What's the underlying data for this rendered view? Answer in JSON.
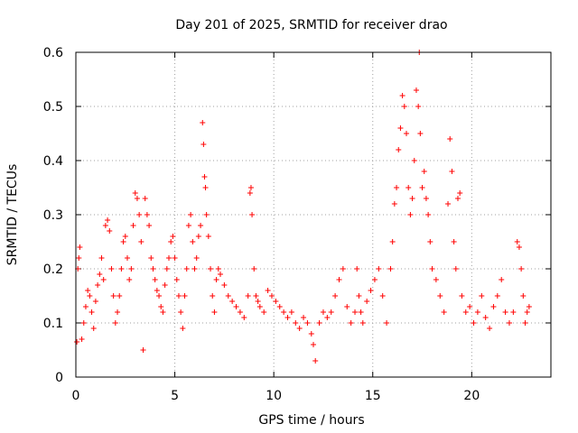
{
  "chart_data": {
    "type": "scatter",
    "title": "Day 201 of 2025, SRMTID for receiver drao",
    "xlabel": "GPS time / hours",
    "ylabel": "SRMTID / TECUs",
    "xlim": [
      0,
      24
    ],
    "ylim": [
      0,
      0.6
    ],
    "x_ticks": [
      0,
      5,
      10,
      15,
      20
    ],
    "x_tick_labels": [
      "0",
      "5",
      "10",
      "15",
      "20"
    ],
    "y_ticks": [
      0,
      0.1,
      0.2,
      0.3,
      0.4,
      0.5,
      0.6
    ],
    "y_tick_labels": [
      "0",
      "0.1",
      "0.2",
      "0.3",
      "0.4",
      "0.5",
      "0.6"
    ],
    "grid": true,
    "marker": "+",
    "color": "#ff0000",
    "series": [
      {
        "name": "drao",
        "points": [
          [
            0.05,
            0.065
          ],
          [
            0.1,
            0.2
          ],
          [
            0.15,
            0.22
          ],
          [
            0.2,
            0.24
          ],
          [
            0.3,
            0.07
          ],
          [
            0.4,
            0.1
          ],
          [
            0.5,
            0.13
          ],
          [
            0.6,
            0.16
          ],
          [
            0.7,
            0.15
          ],
          [
            0.8,
            0.12
          ],
          [
            0.9,
            0.09
          ],
          [
            1.0,
            0.14
          ],
          [
            1.1,
            0.17
          ],
          [
            1.2,
            0.19
          ],
          [
            1.3,
            0.22
          ],
          [
            1.4,
            0.18
          ],
          [
            1.5,
            0.28
          ],
          [
            1.6,
            0.29
          ],
          [
            1.7,
            0.27
          ],
          [
            1.8,
            0.2
          ],
          [
            1.9,
            0.15
          ],
          [
            2.0,
            0.1
          ],
          [
            2.1,
            0.12
          ],
          [
            2.2,
            0.15
          ],
          [
            2.3,
            0.2
          ],
          [
            2.4,
            0.25
          ],
          [
            2.5,
            0.26
          ],
          [
            2.6,
            0.22
          ],
          [
            2.7,
            0.18
          ],
          [
            2.8,
            0.2
          ],
          [
            2.9,
            0.28
          ],
          [
            3.0,
            0.34
          ],
          [
            3.1,
            0.33
          ],
          [
            3.2,
            0.3
          ],
          [
            3.3,
            0.25
          ],
          [
            3.4,
            0.05
          ],
          [
            3.5,
            0.33
          ],
          [
            3.6,
            0.3
          ],
          [
            3.7,
            0.28
          ],
          [
            3.8,
            0.22
          ],
          [
            3.9,
            0.2
          ],
          [
            4.0,
            0.18
          ],
          [
            4.1,
            0.16
          ],
          [
            4.2,
            0.15
          ],
          [
            4.3,
            0.13
          ],
          [
            4.4,
            0.12
          ],
          [
            4.5,
            0.17
          ],
          [
            4.6,
            0.2
          ],
          [
            4.7,
            0.22
          ],
          [
            4.8,
            0.25
          ],
          [
            4.9,
            0.26
          ],
          [
            5.0,
            0.22
          ],
          [
            5.1,
            0.18
          ],
          [
            5.2,
            0.15
          ],
          [
            5.3,
            0.12
          ],
          [
            5.4,
            0.09
          ],
          [
            5.5,
            0.15
          ],
          [
            5.6,
            0.2
          ],
          [
            5.7,
            0.28
          ],
          [
            5.8,
            0.3
          ],
          [
            5.9,
            0.25
          ],
          [
            6.0,
            0.2
          ],
          [
            6.1,
            0.22
          ],
          [
            6.2,
            0.26
          ],
          [
            6.3,
            0.28
          ],
          [
            6.4,
            0.47
          ],
          [
            6.45,
            0.43
          ],
          [
            6.5,
            0.37
          ],
          [
            6.55,
            0.35
          ],
          [
            6.6,
            0.3
          ],
          [
            6.7,
            0.26
          ],
          [
            6.8,
            0.2
          ],
          [
            6.9,
            0.15
          ],
          [
            7.0,
            0.12
          ],
          [
            7.1,
            0.18
          ],
          [
            7.2,
            0.2
          ],
          [
            7.3,
            0.19
          ],
          [
            7.5,
            0.17
          ],
          [
            7.7,
            0.15
          ],
          [
            7.9,
            0.14
          ],
          [
            8.1,
            0.13
          ],
          [
            8.3,
            0.12
          ],
          [
            8.5,
            0.11
          ],
          [
            8.7,
            0.15
          ],
          [
            8.8,
            0.34
          ],
          [
            8.85,
            0.35
          ],
          [
            8.9,
            0.3
          ],
          [
            9.0,
            0.2
          ],
          [
            9.1,
            0.15
          ],
          [
            9.2,
            0.14
          ],
          [
            9.3,
            0.13
          ],
          [
            9.5,
            0.12
          ],
          [
            9.7,
            0.16
          ],
          [
            9.9,
            0.15
          ],
          [
            10.1,
            0.14
          ],
          [
            10.3,
            0.13
          ],
          [
            10.5,
            0.12
          ],
          [
            10.7,
            0.11
          ],
          [
            10.9,
            0.12
          ],
          [
            11.1,
            0.1
          ],
          [
            11.3,
            0.09
          ],
          [
            11.5,
            0.11
          ],
          [
            11.7,
            0.1
          ],
          [
            11.9,
            0.08
          ],
          [
            12.0,
            0.06
          ],
          [
            12.1,
            0.03
          ],
          [
            12.3,
            0.1
          ],
          [
            12.5,
            0.12
          ],
          [
            12.7,
            0.11
          ],
          [
            12.9,
            0.12
          ],
          [
            13.1,
            0.15
          ],
          [
            13.3,
            0.18
          ],
          [
            13.5,
            0.2
          ],
          [
            13.7,
            0.13
          ],
          [
            13.9,
            0.1
          ],
          [
            14.1,
            0.12
          ],
          [
            14.2,
            0.2
          ],
          [
            14.3,
            0.15
          ],
          [
            14.4,
            0.12
          ],
          [
            14.5,
            0.1
          ],
          [
            14.7,
            0.14
          ],
          [
            14.9,
            0.16
          ],
          [
            15.1,
            0.18
          ],
          [
            15.3,
            0.2
          ],
          [
            15.5,
            0.15
          ],
          [
            15.7,
            0.1
          ],
          [
            15.9,
            0.2
          ],
          [
            16.0,
            0.25
          ],
          [
            16.1,
            0.32
          ],
          [
            16.2,
            0.35
          ],
          [
            16.3,
            0.42
          ],
          [
            16.4,
            0.46
          ],
          [
            16.5,
            0.52
          ],
          [
            16.6,
            0.5
          ],
          [
            16.7,
            0.45
          ],
          [
            16.8,
            0.35
          ],
          [
            16.9,
            0.3
          ],
          [
            17.0,
            0.33
          ],
          [
            17.1,
            0.4
          ],
          [
            17.2,
            0.53
          ],
          [
            17.3,
            0.5
          ],
          [
            17.35,
            0.6
          ],
          [
            17.4,
            0.45
          ],
          [
            17.5,
            0.35
          ],
          [
            17.6,
            0.38
          ],
          [
            17.7,
            0.33
          ],
          [
            17.8,
            0.3
          ],
          [
            17.9,
            0.25
          ],
          [
            18.0,
            0.2
          ],
          [
            18.2,
            0.18
          ],
          [
            18.4,
            0.15
          ],
          [
            18.6,
            0.12
          ],
          [
            18.8,
            0.32
          ],
          [
            18.9,
            0.44
          ],
          [
            19.0,
            0.38
          ],
          [
            19.1,
            0.25
          ],
          [
            19.2,
            0.2
          ],
          [
            19.3,
            0.33
          ],
          [
            19.4,
            0.34
          ],
          [
            19.5,
            0.15
          ],
          [
            19.7,
            0.12
          ],
          [
            19.9,
            0.13
          ],
          [
            20.1,
            0.1
          ],
          [
            20.3,
            0.12
          ],
          [
            20.5,
            0.15
          ],
          [
            20.7,
            0.11
          ],
          [
            20.9,
            0.09
          ],
          [
            21.1,
            0.13
          ],
          [
            21.3,
            0.15
          ],
          [
            21.5,
            0.18
          ],
          [
            21.7,
            0.12
          ],
          [
            21.9,
            0.1
          ],
          [
            22.1,
            0.12
          ],
          [
            22.3,
            0.25
          ],
          [
            22.4,
            0.24
          ],
          [
            22.5,
            0.2
          ],
          [
            22.6,
            0.15
          ],
          [
            22.7,
            0.1
          ],
          [
            22.8,
            0.12
          ],
          [
            22.9,
            0.13
          ]
        ]
      }
    ]
  }
}
